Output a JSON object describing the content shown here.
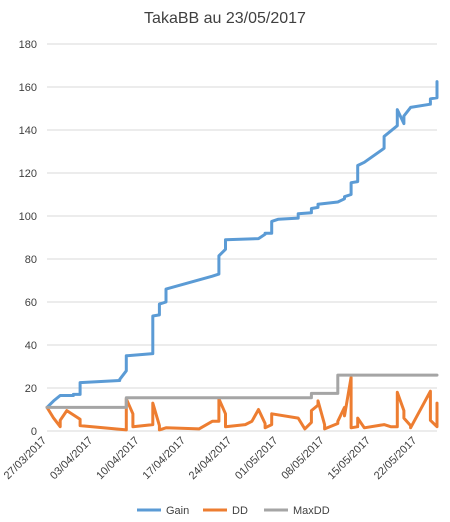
{
  "chart_data": {
    "type": "line",
    "title": "TakaBB au 23/05/2017",
    "xlabel": "",
    "ylabel": "",
    "ylim": [
      0,
      180
    ],
    "yticks": [
      0,
      20,
      40,
      60,
      80,
      100,
      120,
      140,
      160,
      180
    ],
    "xlim": [
      "2017-03-27",
      "2017-05-25"
    ],
    "xticks": [
      "27/03/2017",
      "03/04/2017",
      "10/04/2017",
      "17/04/2017",
      "24/04/2017",
      "01/05/2017",
      "08/05/2017",
      "15/05/2017",
      "22/05/2017"
    ],
    "grid": "horizontal",
    "legend": "bottom",
    "series": [
      {
        "name": "Gain",
        "color": "#5b9bd5",
        "points": [
          [
            "2017-03-27",
            11
          ],
          [
            "2017-03-28",
            14
          ],
          [
            "2017-03-29",
            16.5
          ],
          [
            "2017-03-31",
            16.5
          ],
          [
            "2017-03-31",
            17
          ],
          [
            "2017-04-01",
            17
          ],
          [
            "2017-04-01",
            22.5
          ],
          [
            "2017-04-07",
            23.5
          ],
          [
            "2017-04-07",
            24
          ],
          [
            "2017-04-08",
            28
          ],
          [
            "2017-04-08",
            35
          ],
          [
            "2017-04-12",
            36
          ],
          [
            "2017-04-12",
            53.5
          ],
          [
            "2017-04-13",
            54
          ],
          [
            "2017-04-13",
            59
          ],
          [
            "2017-04-14",
            60
          ],
          [
            "2017-04-14",
            66
          ],
          [
            "2017-04-21",
            72
          ],
          [
            "2017-04-22",
            73
          ],
          [
            "2017-04-22",
            81.5
          ],
          [
            "2017-04-23",
            84.5
          ],
          [
            "2017-04-23",
            89
          ],
          [
            "2017-04-28",
            89.5
          ],
          [
            "2017-04-29",
            91.5
          ],
          [
            "2017-04-29",
            92
          ],
          [
            "2017-04-30",
            92
          ],
          [
            "2017-04-30",
            97.5
          ],
          [
            "2017-05-01",
            98.5
          ],
          [
            "2017-05-04",
            99
          ],
          [
            "2017-05-04",
            101
          ],
          [
            "2017-05-06",
            101.5
          ],
          [
            "2017-05-06",
            103.5
          ],
          [
            "2017-05-07",
            104
          ],
          [
            "2017-05-07",
            105.5
          ],
          [
            "2017-05-10",
            106.5
          ],
          [
            "2017-05-11",
            108
          ],
          [
            "2017-05-11",
            109
          ],
          [
            "2017-05-12",
            110
          ],
          [
            "2017-05-12",
            115.5
          ],
          [
            "2017-05-13",
            116
          ],
          [
            "2017-05-13",
            123.5
          ],
          [
            "2017-05-14",
            125
          ],
          [
            "2017-05-17",
            131.5
          ],
          [
            "2017-05-17",
            137
          ],
          [
            "2017-05-19",
            142
          ],
          [
            "2017-05-19",
            149.5
          ],
          [
            "2017-05-20",
            143
          ],
          [
            "2017-05-20",
            146.5
          ],
          [
            "2017-05-21",
            150.5
          ],
          [
            "2017-05-24",
            152
          ],
          [
            "2017-05-24",
            154.5
          ],
          [
            "2017-05-25",
            155
          ],
          [
            "2017-05-25",
            162.5
          ]
        ]
      },
      {
        "name": "DD",
        "color": "#ed7d31",
        "points": [
          [
            "2017-03-27",
            11
          ],
          [
            "2017-03-28",
            6
          ],
          [
            "2017-03-29",
            2
          ],
          [
            "2017-03-29",
            5
          ],
          [
            "2017-03-30",
            9.5
          ],
          [
            "2017-04-01",
            5.5
          ],
          [
            "2017-04-01",
            2.5
          ],
          [
            "2017-04-08",
            0.5
          ],
          [
            "2017-04-08",
            15
          ],
          [
            "2017-04-09",
            8
          ],
          [
            "2017-04-09",
            2
          ],
          [
            "2017-04-12",
            3
          ],
          [
            "2017-04-12",
            13
          ],
          [
            "2017-04-13",
            2.5
          ],
          [
            "2017-04-13",
            0.5
          ],
          [
            "2017-04-14",
            1.5
          ],
          [
            "2017-04-19",
            1
          ],
          [
            "2017-04-21",
            4.5
          ],
          [
            "2017-04-22",
            4.5
          ],
          [
            "2017-04-22",
            15
          ],
          [
            "2017-04-23",
            8
          ],
          [
            "2017-04-23",
            2
          ],
          [
            "2017-04-26",
            3
          ],
          [
            "2017-04-27",
            4.5
          ],
          [
            "2017-04-28",
            10
          ],
          [
            "2017-04-29",
            3.5
          ],
          [
            "2017-04-29",
            1.5
          ],
          [
            "2017-04-30",
            3
          ],
          [
            "2017-04-30",
            8
          ],
          [
            "2017-05-04",
            6
          ],
          [
            "2017-05-05",
            1
          ],
          [
            "2017-05-06",
            4
          ],
          [
            "2017-05-06",
            9.5
          ],
          [
            "2017-05-07",
            12
          ],
          [
            "2017-05-07",
            14
          ],
          [
            "2017-05-08",
            3
          ],
          [
            "2017-05-08",
            1
          ],
          [
            "2017-05-10",
            3.5
          ],
          [
            "2017-05-10",
            4.5
          ],
          [
            "2017-05-11",
            11
          ],
          [
            "2017-05-11",
            7
          ],
          [
            "2017-05-12",
            25
          ],
          [
            "2017-05-12",
            4
          ],
          [
            "2017-05-12",
            1.5
          ],
          [
            "2017-05-13",
            2
          ],
          [
            "2017-05-13",
            6
          ],
          [
            "2017-05-14",
            1.5
          ],
          [
            "2017-05-17",
            3
          ],
          [
            "2017-05-18",
            2
          ],
          [
            "2017-05-19",
            2
          ],
          [
            "2017-05-19",
            18
          ],
          [
            "2017-05-20",
            9.5
          ],
          [
            "2017-05-20",
            6
          ],
          [
            "2017-05-21",
            2.5
          ],
          [
            "2017-05-21",
            1.5
          ],
          [
            "2017-05-24",
            18.5
          ],
          [
            "2017-05-24",
            5
          ],
          [
            "2017-05-25",
            2
          ],
          [
            "2017-05-25",
            13
          ]
        ]
      },
      {
        "name": "MaxDD",
        "color": "#a5a5a5",
        "points": [
          [
            "2017-03-27",
            11
          ],
          [
            "2017-04-08",
            11
          ],
          [
            "2017-04-08",
            15.5
          ],
          [
            "2017-05-06",
            15.5
          ],
          [
            "2017-05-06",
            17.5
          ],
          [
            "2017-05-10",
            17.5
          ],
          [
            "2017-05-10",
            26
          ],
          [
            "2017-05-25",
            26
          ]
        ]
      }
    ]
  }
}
